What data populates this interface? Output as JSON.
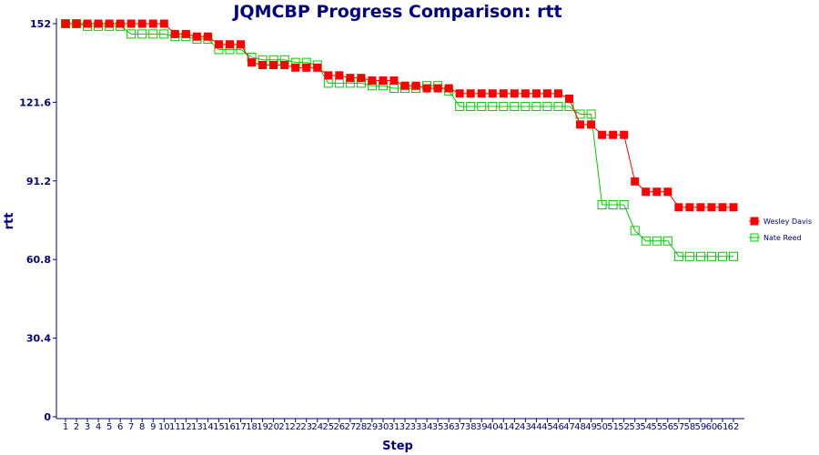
{
  "chart_data": {
    "type": "line",
    "title": "JQMCBP Progress Comparison: rtt",
    "xlabel": "Step",
    "ylabel": "rtt",
    "ylim": [
      0,
      152
    ],
    "yticks": [
      "0",
      "30.4",
      "60.8",
      "91.2",
      "121.6",
      "152"
    ],
    "x": [
      1,
      2,
      3,
      4,
      5,
      6,
      7,
      8,
      9,
      10,
      11,
      12,
      13,
      14,
      15,
      16,
      17,
      18,
      19,
      20,
      21,
      22,
      23,
      24,
      25,
      26,
      27,
      28,
      29,
      30,
      31,
      32,
      33,
      34,
      35,
      36,
      37,
      38,
      39,
      40,
      41,
      42,
      43,
      44,
      45,
      46,
      47,
      48,
      49,
      50,
      51,
      52,
      53,
      54,
      55,
      56,
      57,
      58,
      59,
      60,
      61,
      62
    ],
    "legend_position": "right",
    "series": [
      {
        "name": "Wesley Davis",
        "color": "#ff0000",
        "marker": "filled-square",
        "values": [
          152,
          152,
          152,
          152,
          152,
          152,
          152,
          152,
          152,
          152,
          148,
          148,
          147,
          147,
          144,
          144,
          144,
          137,
          136,
          136,
          136,
          135,
          135,
          135,
          132,
          132,
          131,
          131,
          130,
          130,
          130,
          128,
          128,
          127,
          127,
          127,
          125,
          125,
          125,
          125,
          125,
          125,
          125,
          125,
          125,
          125,
          123,
          113,
          113,
          109,
          109,
          109,
          91,
          87,
          87,
          87,
          81,
          81,
          81,
          81,
          81,
          81
        ]
      },
      {
        "name": "Nate Reed",
        "color": "#00cc00",
        "marker": "hollow-square",
        "values": [
          152,
          152,
          151,
          151,
          151,
          151,
          148,
          148,
          148,
          148,
          147,
          147,
          146,
          146,
          142,
          142,
          142,
          139,
          138,
          138,
          138,
          137,
          137,
          136,
          129,
          129,
          129,
          129,
          128,
          128,
          127,
          127,
          127,
          128,
          128,
          126,
          120,
          120,
          120,
          120,
          120,
          120,
          120,
          120,
          120,
          120,
          120,
          117,
          117,
          82,
          82,
          82,
          72,
          68,
          68,
          68,
          62,
          62,
          62,
          62,
          62,
          62
        ]
      }
    ]
  }
}
